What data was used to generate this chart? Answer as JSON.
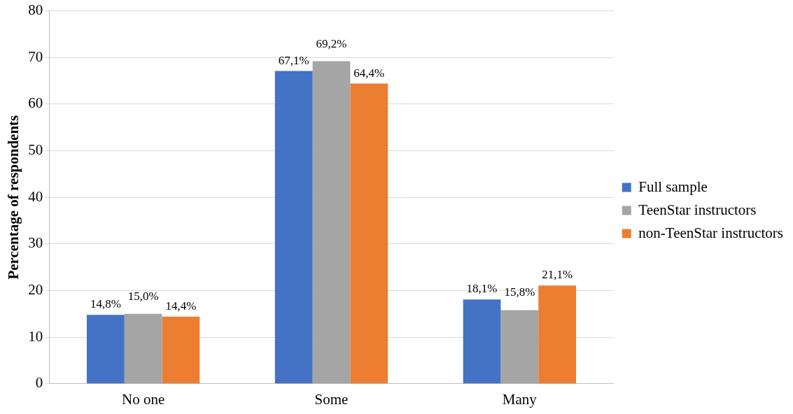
{
  "chart_data": {
    "type": "bar",
    "ylabel": "Percentage of respondents",
    "categories": [
      "No one",
      "Some",
      "Many"
    ],
    "series": [
      {
        "name": "Full sample",
        "color": "#4472c4",
        "values": [
          14.8,
          67.1,
          18.1
        ],
        "value_labels": [
          "14,8%",
          "67,1%",
          "18,1%"
        ]
      },
      {
        "name": "TeenStar instructors",
        "color": "#a5a5a5",
        "values": [
          15.0,
          69.2,
          15.8
        ],
        "value_labels": [
          "15,0%",
          "69,2%",
          "15,8%"
        ]
      },
      {
        "name": "non-TeenStar instructors",
        "color": "#ed7d31",
        "values": [
          14.4,
          64.4,
          21.1
        ],
        "value_labels": [
          "14,4%",
          "64,4%",
          "21,1%"
        ]
      }
    ],
    "ylim": [
      0,
      80
    ],
    "yticks": [
      0,
      10,
      20,
      30,
      40,
      50,
      60,
      70,
      80
    ],
    "grid": "y",
    "legend": "right"
  }
}
